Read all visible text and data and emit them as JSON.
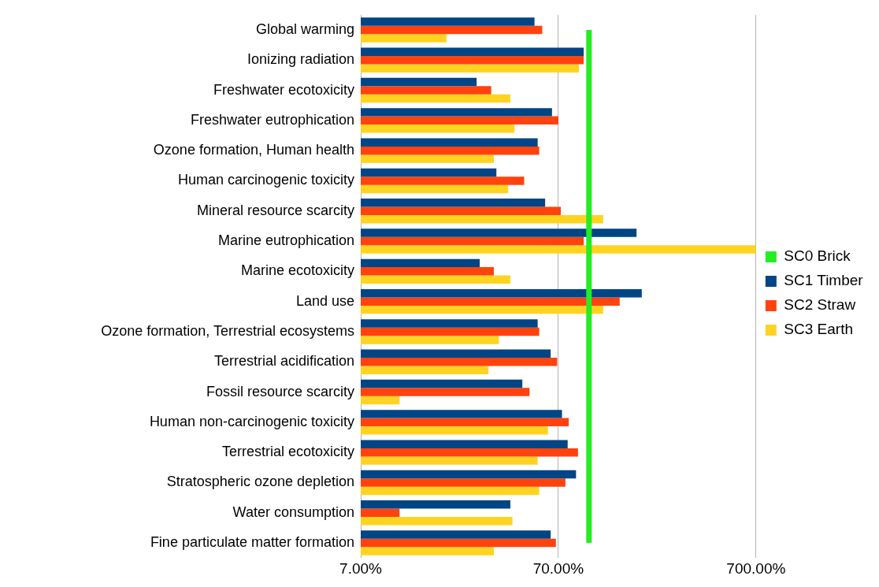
{
  "chart_data": {
    "type": "bar",
    "orientation": "horizontal",
    "log": "x",
    "categories": [
      "Global warming",
      "Ionizing radiation",
      "Freshwater ecotoxicity",
      "Freshwater eutrophication",
      "Ozone formation, Human health",
      "Human carcinogenic toxicity",
      "Mineral resource scarcity",
      "Marine eutrophication",
      "Marine ecotoxicity",
      "Land use",
      "Ozone formation, Terrestrial ecosystems",
      "Terrestrial acidification",
      "Fossil resource scarcity",
      "Human non-carcinogenic toxicity",
      "Terrestrial ecotoxicity",
      "Stratospheric ozone depletion",
      "Water consumption",
      "Fine particulate matter formation"
    ],
    "series": [
      {
        "name": "SC0 Brick",
        "type": "line",
        "color": "#22ee22",
        "values": [
          100,
          100,
          100,
          100,
          100,
          100,
          100,
          100,
          100,
          100,
          100,
          100,
          100,
          100,
          100,
          100,
          100,
          100
        ]
      },
      {
        "name": "SC1 Timber",
        "color": "#004586",
        "values": [
          53,
          94,
          27,
          65,
          55,
          34,
          60,
          174,
          28,
          185,
          55,
          64,
          46,
          73,
          78,
          86,
          40,
          64
        ]
      },
      {
        "name": "SC2 Straw",
        "color": "#ff420e",
        "values": [
          58,
          94,
          32,
          70,
          56,
          47,
          72,
          94,
          33,
          143,
          56,
          69,
          50,
          79,
          88,
          76,
          11,
          68
        ]
      },
      {
        "name": "SC3 Earth",
        "color": "#ffd320",
        "values": [
          19,
          89,
          40,
          42,
          33,
          39,
          118,
          700,
          40,
          118,
          35,
          31,
          11,
          62,
          55,
          56,
          41,
          33
        ]
      }
    ],
    "marker": "none",
    "xlim": [
      7,
      700
    ],
    "xticks": [
      {
        "value": 7,
        "label": "7.00%"
      },
      {
        "value": 70,
        "label": "70.00%"
      },
      {
        "value": 700,
        "label": "700.00%"
      }
    ],
    "grid": "x",
    "legend": "right"
  }
}
